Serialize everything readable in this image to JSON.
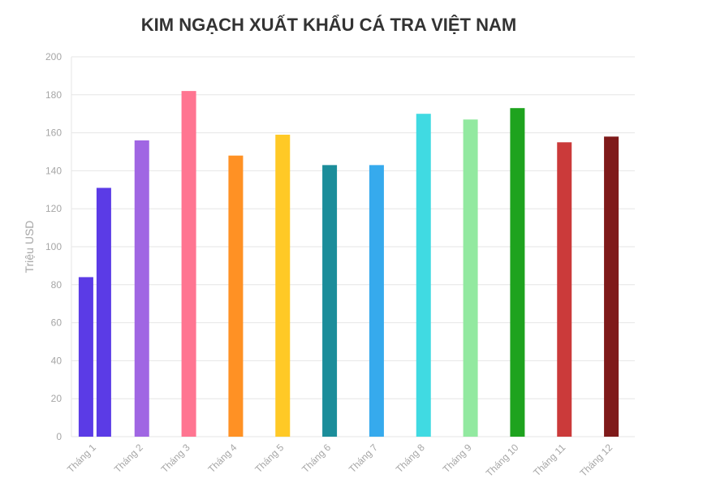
{
  "chart_data": {
    "type": "bar",
    "title": "KIM NGẠCH XUẤT KHẨU CÁ TRA VIỆT NAM",
    "xlabel": "",
    "ylabel": "Triệu USD",
    "ylim": [
      0,
      200
    ],
    "yticks": [
      0,
      20,
      40,
      60,
      80,
      100,
      120,
      140,
      160,
      180,
      200
    ],
    "grid": true,
    "legend": "none",
    "categories": [
      "Tháng 1",
      "Tháng 2",
      "Tháng 3",
      "Tháng 4",
      "Tháng 5",
      "Tháng 6",
      "Tháng 7",
      "Tháng 8",
      "Tháng 9",
      "Tháng 10",
      "Tháng 11",
      "Tháng 12"
    ],
    "bars": [
      {
        "category": "Tháng 1",
        "values": [
          84,
          131
        ],
        "color": "#5b3be6"
      },
      {
        "category": "Tháng 2",
        "values": [
          156
        ],
        "color": "#a066e3"
      },
      {
        "category": "Tháng 3",
        "values": [
          182
        ],
        "color": "#ff7591"
      },
      {
        "category": "Tháng 4",
        "values": [
          148
        ],
        "color": "#ff9124"
      },
      {
        "category": "Tháng 5",
        "values": [
          159
        ],
        "color": "#ffc926"
      },
      {
        "category": "Tháng 6",
        "values": [
          143
        ],
        "color": "#1b8d9a"
      },
      {
        "category": "Tháng 7",
        "values": [
          143
        ],
        "color": "#36aaed"
      },
      {
        "category": "Tháng 8",
        "values": [
          170
        ],
        "color": "#40dae2"
      },
      {
        "category": "Tháng 9",
        "values": [
          167
        ],
        "color": "#92e9a0"
      },
      {
        "category": "Tháng 10",
        "values": [
          173
        ],
        "color": "#1ea31e"
      },
      {
        "category": "Tháng 11",
        "values": [
          155
        ],
        "color": "#cb3a3a"
      },
      {
        "category": "Tháng 12",
        "values": [
          158
        ],
        "color": "#7f1a1a"
      }
    ],
    "colors": {
      "grid": "#e6e6e6",
      "axis_text": "#a6a6a6",
      "title": "#333333"
    }
  }
}
